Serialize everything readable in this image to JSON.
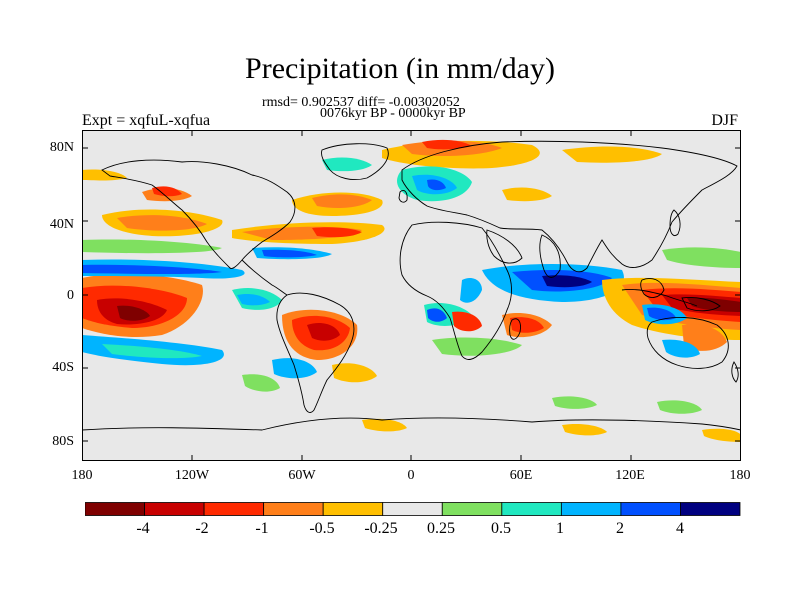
{
  "title": "Precipitation (in mm/day)",
  "subtitle_stats": "rmsd= 0.902537 diff= -0.00302052",
  "subtitle_period": "0076kyr BP - 0000kyr BP",
  "label_left": "Expt = xqfuL-xqfua",
  "label_right": "DJF",
  "y_ticks": [
    "80N",
    "40N",
    "0",
    "40S",
    "80S"
  ],
  "x_ticks": [
    "180",
    "120W",
    "60W",
    "0",
    "60E",
    "120E",
    "180"
  ],
  "colorbar": {
    "colors": [
      "#7f0000",
      "#c80000",
      "#ff2a00",
      "#ff7f1a",
      "#ffbf00",
      "#e8e8e8",
      "#7fe060",
      "#20e8c0",
      "#00b4ff",
      "#0050ff",
      "#000080"
    ],
    "labels": [
      "-4",
      "-2",
      "-1",
      "-0.5",
      "-0.25",
      "0.25",
      "0.5",
      "1",
      "2",
      "4"
    ]
  },
  "colors": {
    "background": "#e8e8e8",
    "coast": "#000000"
  }
}
